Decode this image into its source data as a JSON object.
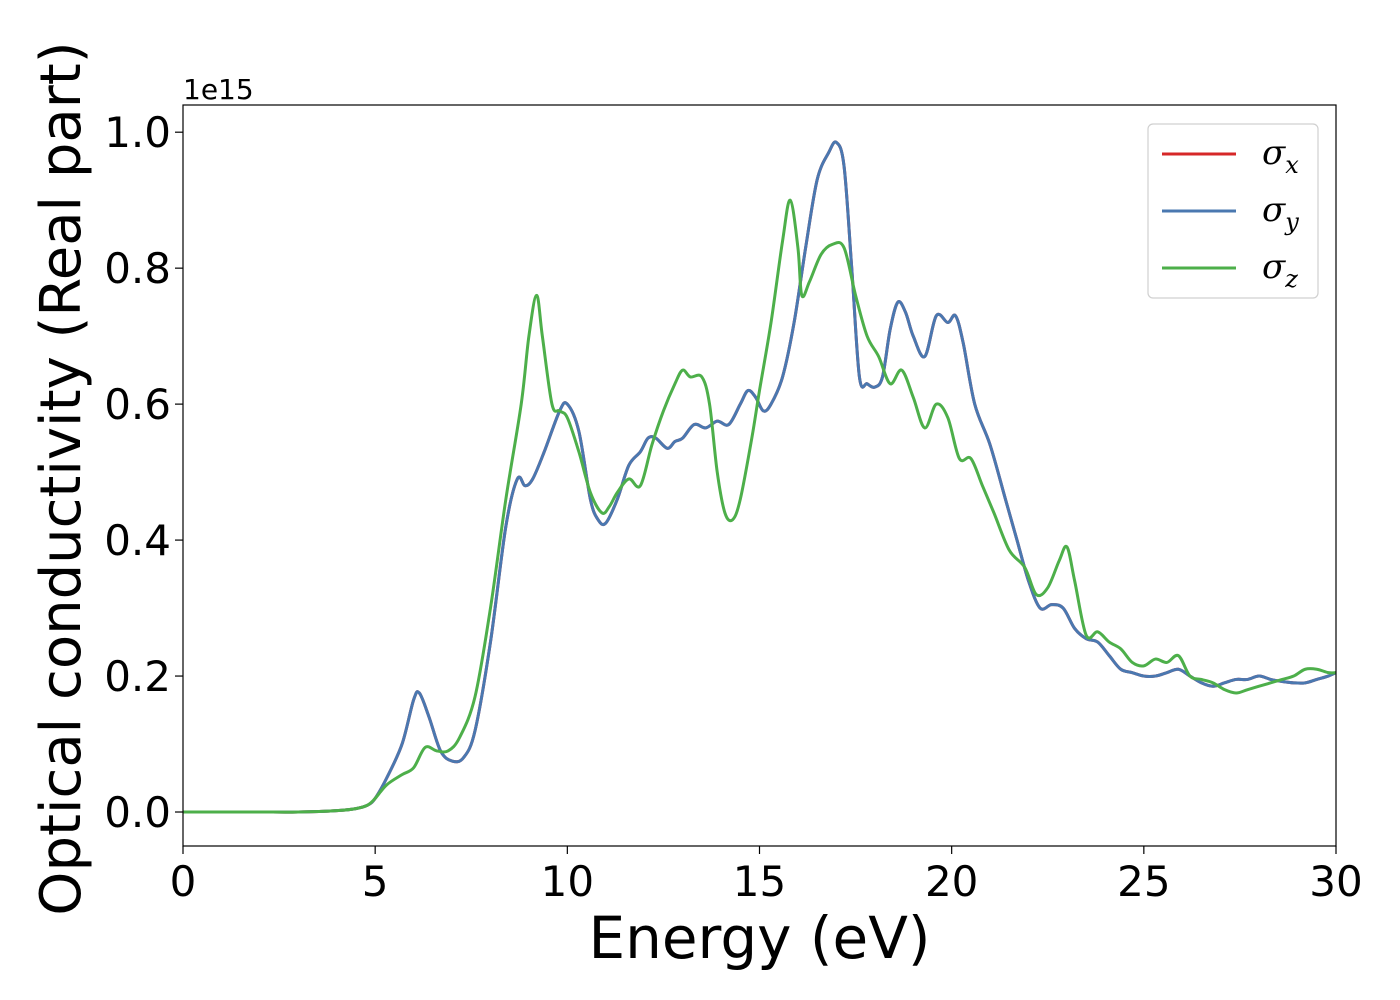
{
  "chart_data": {
    "type": "line",
    "xlabel": "Energy (eV)",
    "ylabel": "Optical conductivity (Real part)",
    "offset_label": "1e15",
    "xlim": [
      0,
      30
    ],
    "ylim": [
      -0.05,
      1.04
    ],
    "x_ticks": [
      0,
      5,
      10,
      15,
      20,
      25,
      30
    ],
    "x_tick_labels": [
      "0",
      "5",
      "10",
      "15",
      "20",
      "25",
      "30"
    ],
    "y_ticks": [
      0.0,
      0.2,
      0.4,
      0.6,
      0.8,
      1.0
    ],
    "y_tick_labels": [
      "0.0",
      "0.2",
      "0.4",
      "0.6",
      "0.8",
      "1.0"
    ],
    "grid": false,
    "legend_position": "top-right",
    "series": [
      {
        "name": "x",
        "legend_symbol": "σ",
        "color": "#d62728",
        "x": [
          0,
          1,
          2,
          3,
          4,
          4.5,
          4.8,
          5.0,
          5.3,
          5.7,
          6.0,
          6.15,
          6.4,
          6.7,
          7.0,
          7.3,
          7.6,
          8.0,
          8.4,
          8.7,
          8.9,
          9.1,
          9.4,
          9.8,
          10.0,
          10.3,
          10.6,
          10.8,
          11.0,
          11.3,
          11.6,
          11.9,
          12.1,
          12.3,
          12.6,
          12.8,
          13.0,
          13.3,
          13.6,
          13.9,
          14.2,
          14.5,
          14.7,
          14.9,
          15.1,
          15.3,
          15.6,
          15.9,
          16.2,
          16.5,
          16.8,
          17.0,
          17.2,
          17.4,
          17.6,
          17.8,
          18.0,
          18.2,
          18.4,
          18.6,
          18.8,
          19.0,
          19.3,
          19.6,
          19.9,
          20.1,
          20.3,
          20.6,
          21.0,
          21.4,
          21.7,
          22.0,
          22.3,
          22.6,
          22.9,
          23.2,
          23.5,
          23.8,
          24.1,
          24.4,
          24.7,
          25.0,
          25.3,
          25.6,
          25.9,
          26.2,
          26.5,
          26.8,
          27.1,
          27.4,
          27.7,
          28.0,
          28.3,
          28.6,
          28.9,
          29.2,
          29.5,
          29.8,
          30.0
        ],
        "values": [
          0,
          0,
          0,
          0,
          0.002,
          0.005,
          0.01,
          0.02,
          0.05,
          0.1,
          0.165,
          0.175,
          0.14,
          0.09,
          0.075,
          0.08,
          0.12,
          0.25,
          0.42,
          0.49,
          0.48,
          0.49,
          0.53,
          0.59,
          0.6,
          0.56,
          0.46,
          0.43,
          0.425,
          0.46,
          0.51,
          0.53,
          0.55,
          0.55,
          0.535,
          0.545,
          0.55,
          0.57,
          0.565,
          0.575,
          0.57,
          0.6,
          0.62,
          0.61,
          0.59,
          0.6,
          0.64,
          0.72,
          0.83,
          0.93,
          0.97,
          0.985,
          0.95,
          0.8,
          0.64,
          0.63,
          0.625,
          0.64,
          0.71,
          0.75,
          0.735,
          0.7,
          0.67,
          0.73,
          0.72,
          0.73,
          0.69,
          0.6,
          0.54,
          0.46,
          0.4,
          0.34,
          0.3,
          0.305,
          0.3,
          0.27,
          0.255,
          0.25,
          0.23,
          0.21,
          0.205,
          0.2,
          0.2,
          0.205,
          0.21,
          0.2,
          0.19,
          0.185,
          0.19,
          0.195,
          0.195,
          0.2,
          0.195,
          0.192,
          0.19,
          0.19,
          0.195,
          0.2,
          0.205
        ]
      },
      {
        "name": "y",
        "legend_symbol": "σ",
        "color": "#4a78b0",
        "x": [
          0,
          1,
          2,
          3,
          4,
          4.5,
          4.8,
          5.0,
          5.3,
          5.7,
          6.0,
          6.15,
          6.4,
          6.7,
          7.0,
          7.3,
          7.6,
          8.0,
          8.4,
          8.7,
          8.9,
          9.1,
          9.4,
          9.8,
          10.0,
          10.3,
          10.6,
          10.8,
          11.0,
          11.3,
          11.6,
          11.9,
          12.1,
          12.3,
          12.6,
          12.8,
          13.0,
          13.3,
          13.6,
          13.9,
          14.2,
          14.5,
          14.7,
          14.9,
          15.1,
          15.3,
          15.6,
          15.9,
          16.2,
          16.5,
          16.8,
          17.0,
          17.2,
          17.4,
          17.6,
          17.8,
          18.0,
          18.2,
          18.4,
          18.6,
          18.8,
          19.0,
          19.3,
          19.6,
          19.9,
          20.1,
          20.3,
          20.6,
          21.0,
          21.4,
          21.7,
          22.0,
          22.3,
          22.6,
          22.9,
          23.2,
          23.5,
          23.8,
          24.1,
          24.4,
          24.7,
          25.0,
          25.3,
          25.6,
          25.9,
          26.2,
          26.5,
          26.8,
          27.1,
          27.4,
          27.7,
          28.0,
          28.3,
          28.6,
          28.9,
          29.2,
          29.5,
          29.8,
          30.0
        ],
        "values": [
          0,
          0,
          0,
          0,
          0.002,
          0.005,
          0.01,
          0.02,
          0.05,
          0.1,
          0.165,
          0.175,
          0.14,
          0.09,
          0.075,
          0.08,
          0.12,
          0.25,
          0.42,
          0.49,
          0.48,
          0.49,
          0.53,
          0.59,
          0.6,
          0.56,
          0.46,
          0.43,
          0.425,
          0.46,
          0.51,
          0.53,
          0.55,
          0.55,
          0.535,
          0.545,
          0.55,
          0.57,
          0.565,
          0.575,
          0.57,
          0.6,
          0.62,
          0.61,
          0.59,
          0.6,
          0.64,
          0.72,
          0.83,
          0.93,
          0.97,
          0.985,
          0.95,
          0.8,
          0.64,
          0.63,
          0.625,
          0.64,
          0.71,
          0.75,
          0.735,
          0.7,
          0.67,
          0.73,
          0.72,
          0.73,
          0.69,
          0.6,
          0.54,
          0.46,
          0.4,
          0.34,
          0.3,
          0.305,
          0.3,
          0.27,
          0.255,
          0.25,
          0.23,
          0.21,
          0.205,
          0.2,
          0.2,
          0.205,
          0.21,
          0.2,
          0.19,
          0.185,
          0.19,
          0.195,
          0.195,
          0.2,
          0.195,
          0.192,
          0.19,
          0.19,
          0.195,
          0.2,
          0.205
        ]
      },
      {
        "name": "z",
        "legend_symbol": "σ",
        "color": "#4daf4a",
        "x": [
          0,
          1,
          2,
          3,
          4,
          4.5,
          4.8,
          5.0,
          5.3,
          5.7,
          6.0,
          6.3,
          6.6,
          6.9,
          7.2,
          7.6,
          8.0,
          8.4,
          8.8,
          9.0,
          9.2,
          9.35,
          9.6,
          9.8,
          10.0,
          10.3,
          10.6,
          10.9,
          11.1,
          11.3,
          11.6,
          11.9,
          12.2,
          12.5,
          12.8,
          13.0,
          13.2,
          13.5,
          13.7,
          13.9,
          14.1,
          14.3,
          14.5,
          14.8,
          15.0,
          15.3,
          15.6,
          15.8,
          16.0,
          16.1,
          16.3,
          16.6,
          16.9,
          17.2,
          17.5,
          17.8,
          18.1,
          18.4,
          18.7,
          19.0,
          19.3,
          19.6,
          19.9,
          20.2,
          20.5,
          20.8,
          21.1,
          21.5,
          21.9,
          22.2,
          22.5,
          22.8,
          23.0,
          23.2,
          23.5,
          23.8,
          24.1,
          24.4,
          24.7,
          25.0,
          25.3,
          25.6,
          25.9,
          26.2,
          26.5,
          26.8,
          27.1,
          27.4,
          27.7,
          28.0,
          28.3,
          28.6,
          28.9,
          29.2,
          29.5,
          29.8,
          30.0
        ],
        "values": [
          0,
          0,
          0,
          0,
          0.002,
          0.005,
          0.01,
          0.02,
          0.04,
          0.055,
          0.065,
          0.095,
          0.09,
          0.09,
          0.11,
          0.17,
          0.3,
          0.46,
          0.6,
          0.7,
          0.76,
          0.7,
          0.6,
          0.59,
          0.58,
          0.53,
          0.47,
          0.44,
          0.45,
          0.47,
          0.49,
          0.48,
          0.54,
          0.59,
          0.63,
          0.65,
          0.64,
          0.64,
          0.6,
          0.5,
          0.44,
          0.43,
          0.46,
          0.55,
          0.62,
          0.72,
          0.84,
          0.9,
          0.83,
          0.76,
          0.78,
          0.82,
          0.835,
          0.83,
          0.76,
          0.7,
          0.67,
          0.63,
          0.65,
          0.61,
          0.565,
          0.6,
          0.58,
          0.52,
          0.52,
          0.48,
          0.44,
          0.385,
          0.36,
          0.32,
          0.33,
          0.37,
          0.39,
          0.34,
          0.26,
          0.265,
          0.25,
          0.24,
          0.22,
          0.215,
          0.225,
          0.22,
          0.23,
          0.2,
          0.195,
          0.19,
          0.18,
          0.175,
          0.18,
          0.185,
          0.19,
          0.195,
          0.2,
          0.21,
          0.21,
          0.205,
          0.205
        ]
      }
    ]
  }
}
